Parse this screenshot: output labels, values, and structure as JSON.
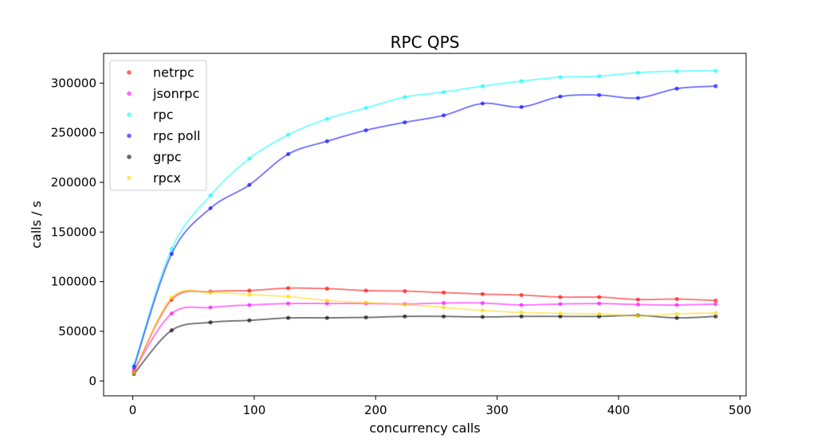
{
  "chart_data": {
    "type": "line",
    "title": "RPC QPS",
    "xlabel": "concurrency calls",
    "ylabel": "calls / s",
    "xlim": [
      -24,
      505
    ],
    "ylim": [
      -15000,
      330000
    ],
    "xticks": [
      0,
      100,
      200,
      300,
      400,
      500
    ],
    "yticks": [
      0,
      50000,
      100000,
      150000,
      200000,
      250000,
      300000
    ],
    "grid": false,
    "legend_position": "top-left",
    "x": [
      1,
      32,
      64,
      96,
      128,
      160,
      192,
      224,
      256,
      288,
      320,
      352,
      384,
      416,
      448,
      480
    ],
    "series": [
      {
        "name": "netrpc",
        "color": "#ff0000",
        "values": [
          9000,
          82000,
          90000,
          91000,
          93500,
          93000,
          91000,
          90500,
          89000,
          87500,
          86500,
          84500,
          84500,
          82000,
          82500,
          81000
        ]
      },
      {
        "name": "jsonrpc",
        "color": "#ff00ff",
        "values": [
          11000,
          68000,
          74000,
          76500,
          78000,
          78000,
          78000,
          77500,
          78500,
          78500,
          76500,
          77500,
          78000,
          77000,
          76500,
          77500
        ]
      },
      {
        "name": "rpc",
        "color": "#00ffff",
        "values": [
          16000,
          133000,
          187000,
          224000,
          248000,
          264000,
          275000,
          286000,
          291000,
          297000,
          302000,
          306000,
          307000,
          310500,
          312000,
          312500
        ]
      },
      {
        "name": "rpc poll",
        "color": "#0000ff",
        "values": [
          14000,
          128000,
          174000,
          197500,
          228500,
          241500,
          252500,
          260500,
          267500,
          279500,
          276000,
          286500,
          288000,
          285000,
          294500,
          297000
        ]
      },
      {
        "name": "grpc",
        "color": "#000000",
        "values": [
          7000,
          51000,
          59000,
          61000,
          63500,
          63500,
          64000,
          65000,
          65000,
          64500,
          65000,
          65000,
          65000,
          66000,
          63500,
          65000
        ]
      },
      {
        "name": "rpcx",
        "color": "#ffd700",
        "values": [
          8000,
          84000,
          89000,
          87000,
          85000,
          81000,
          79000,
          77000,
          74000,
          71000,
          69000,
          68000,
          67500,
          65500,
          67500,
          68500
        ]
      }
    ]
  }
}
